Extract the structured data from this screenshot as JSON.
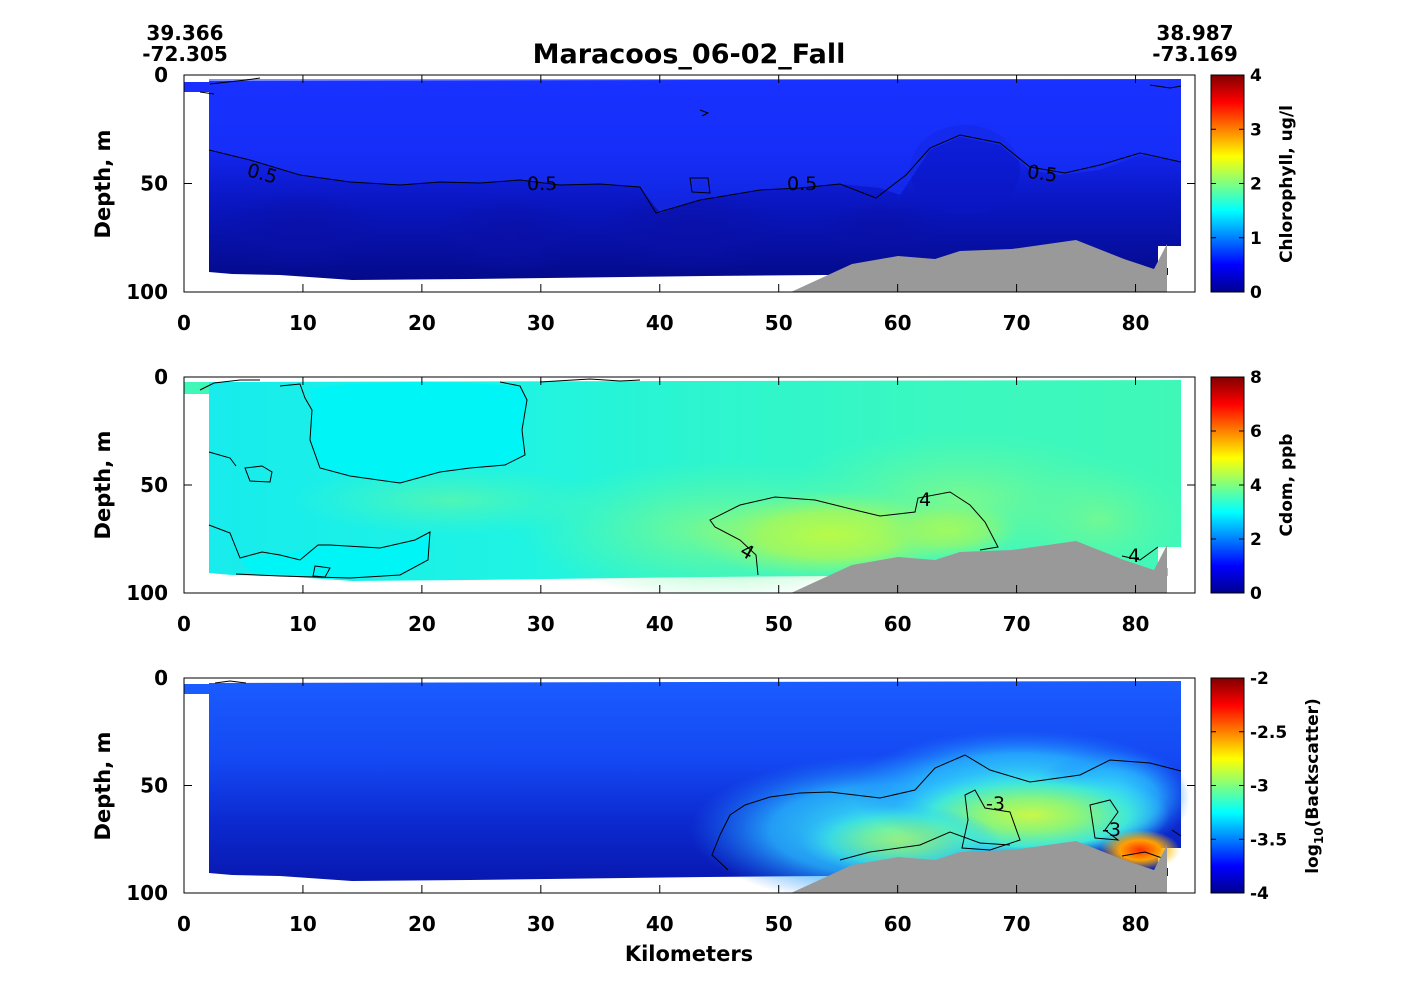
{
  "figure": {
    "title": "Maracoos_06-02_Fall",
    "start_coord": {
      "lat": "39.366",
      "lon": "-72.305"
    },
    "end_coord": {
      "lat": "38.987",
      "lon": "-73.169"
    },
    "xlabel": "Kilometers"
  },
  "chart_data": [
    {
      "type": "heatmap",
      "name": "chlorophyll-section",
      "ylabel": "Depth, m",
      "colorbar_label": "Chlorophyll, ug/l",
      "x_ticks": [
        0,
        10,
        20,
        30,
        40,
        50,
        60,
        70,
        80
      ],
      "y_ticks": [
        0,
        50,
        100
      ],
      "xlim": [
        0,
        85
      ],
      "ylim": [
        100,
        0
      ],
      "clim": [
        0,
        4
      ],
      "colorbar_ticks": [
        "0",
        "1",
        "2",
        "3",
        "4"
      ],
      "colormap": "jet",
      "contour_labels": [
        {
          "text": "0.5",
          "x": 6.5,
          "y": 45
        },
        {
          "text": "0.5",
          "x": 30,
          "y": 50
        },
        {
          "text": "0.5",
          "x": 52,
          "y": 50
        },
        {
          "text": "0.5",
          "x": 72,
          "y": 46
        }
      ],
      "contour_levels": [
        0.5
      ],
      "grid": false
    },
    {
      "type": "heatmap",
      "name": "cdom-section",
      "ylabel": "Depth, m",
      "colorbar_label": "Cdom, ppb",
      "x_ticks": [
        0,
        10,
        20,
        30,
        40,
        50,
        60,
        70,
        80
      ],
      "y_ticks": [
        0,
        50,
        100
      ],
      "xlim": [
        0,
        85
      ],
      "ylim": [
        100,
        0
      ],
      "clim": [
        0,
        8
      ],
      "colorbar_ticks": [
        "0",
        "2",
        "4",
        "6",
        "8"
      ],
      "colormap": "jet",
      "contour_labels": [
        {
          "text": "4",
          "x": 62,
          "y": 56
        },
        {
          "text": "4",
          "x": 47,
          "y": 80
        },
        {
          "text": "4",
          "x": 80,
          "y": 82
        }
      ],
      "contour_levels": [
        4
      ],
      "grid": false
    },
    {
      "type": "heatmap",
      "name": "backscatter-section",
      "ylabel": "Depth, m",
      "colorbar_label_base": "log",
      "colorbar_label_sub": "10",
      "colorbar_label_rest": "(Backscatter)",
      "x_ticks": [
        0,
        10,
        20,
        30,
        40,
        50,
        60,
        70,
        80
      ],
      "y_ticks": [
        0,
        50,
        100
      ],
      "xlim": [
        0,
        85
      ],
      "ylim": [
        100,
        0
      ],
      "clim": [
        -4,
        -2
      ],
      "colorbar_ticks": [
        "-4",
        "-3.5",
        "-3",
        "-2.5",
        "-2"
      ],
      "colormap": "jet",
      "contour_labels": [
        {
          "text": "-3",
          "x": 68,
          "y": 57
        },
        {
          "text": "-3",
          "x": 78,
          "y": 70
        }
      ],
      "contour_levels": [
        -3
      ],
      "grid": false
    }
  ],
  "bathymetry": {
    "color": "#999999",
    "x": [
      51,
      56,
      60,
      64,
      66,
      70,
      75,
      79,
      81,
      82,
      83,
      83
    ],
    "depth": [
      100,
      86,
      83,
      84,
      80,
      79,
      75,
      83,
      87,
      83,
      78,
      100
    ]
  },
  "colors": {
    "background": "#ffffff",
    "seafloor": "#999999"
  }
}
